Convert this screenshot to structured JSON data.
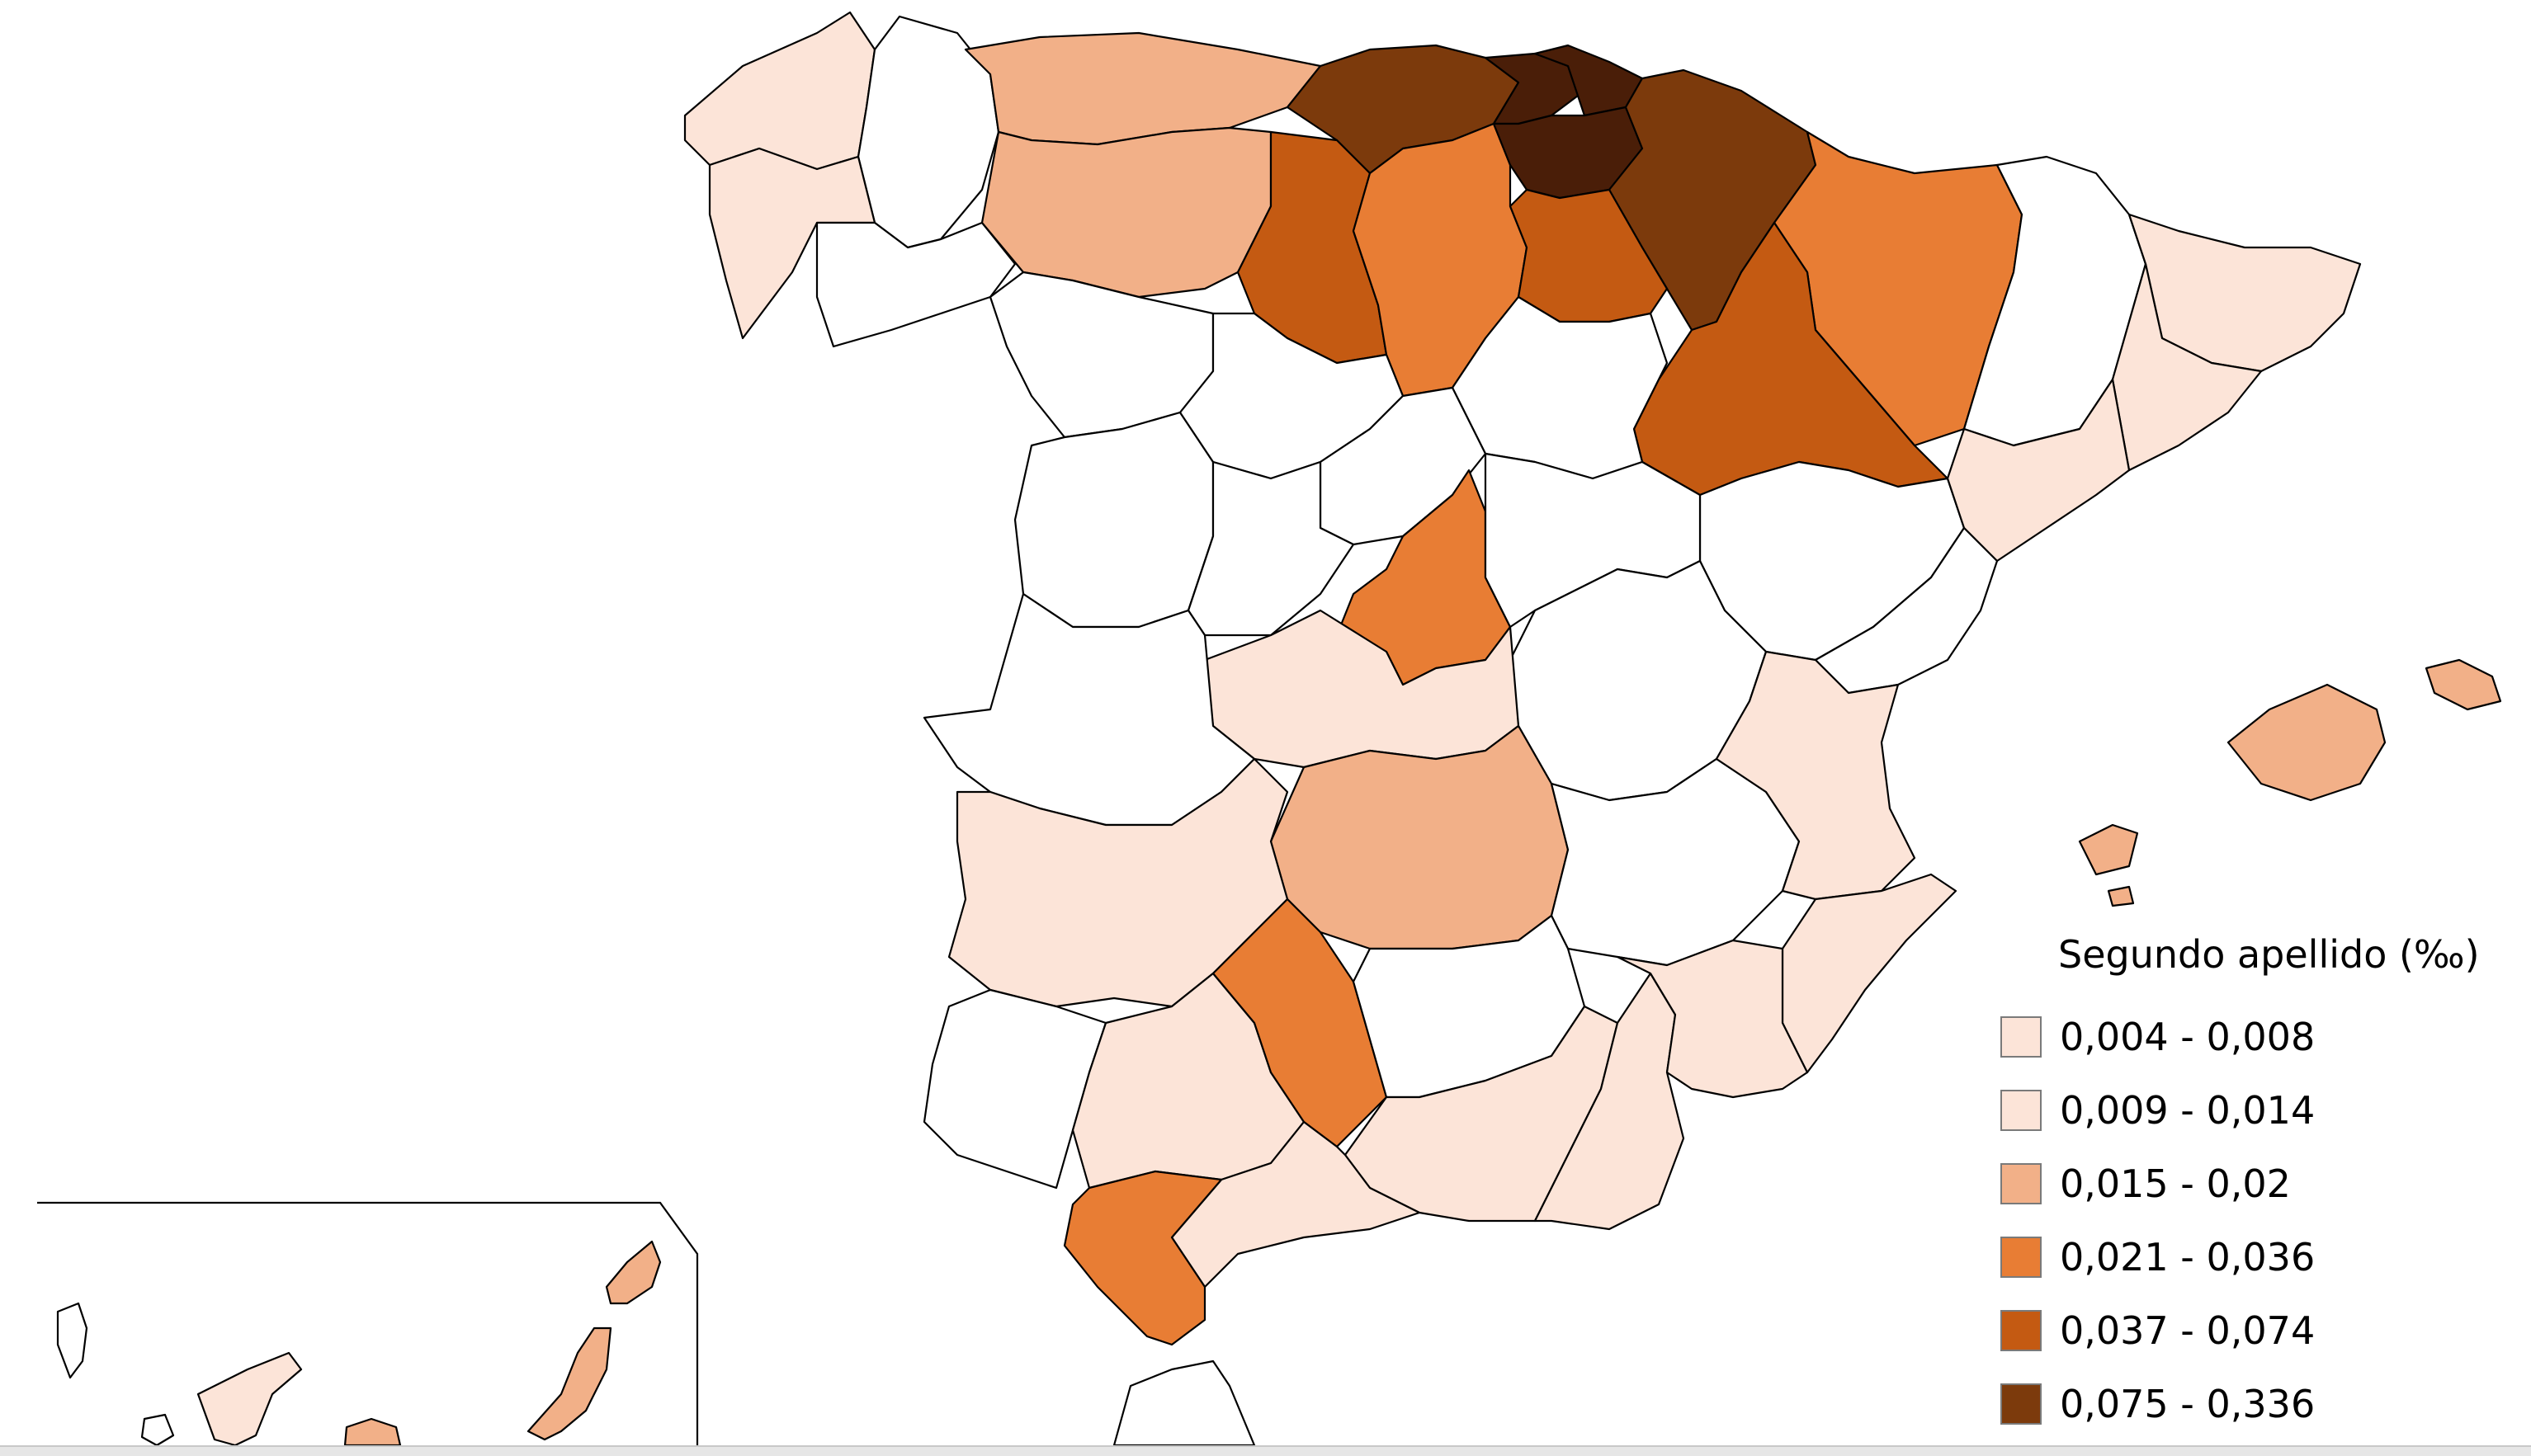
{
  "legend": {
    "title": "Segundo apellido (‰)",
    "classes": [
      {
        "label": "0,004 - 0,008",
        "color": "#fce4d8"
      },
      {
        "label": "0,009 - 0,014",
        "color": "#fce4d8"
      },
      {
        "label": "0,015 - 0,02",
        "color": "#f2b088"
      },
      {
        "label": "0,021 - 0,036",
        "color": "#e87d34"
      },
      {
        "label": "0,037 - 0,074",
        "color": "#c45a12"
      },
      {
        "label": "0,075 - 0,336",
        "color": "#7c3a0c"
      }
    ]
  },
  "colors": {
    "no_data": "#ffffff",
    "border": "#000000"
  }
}
